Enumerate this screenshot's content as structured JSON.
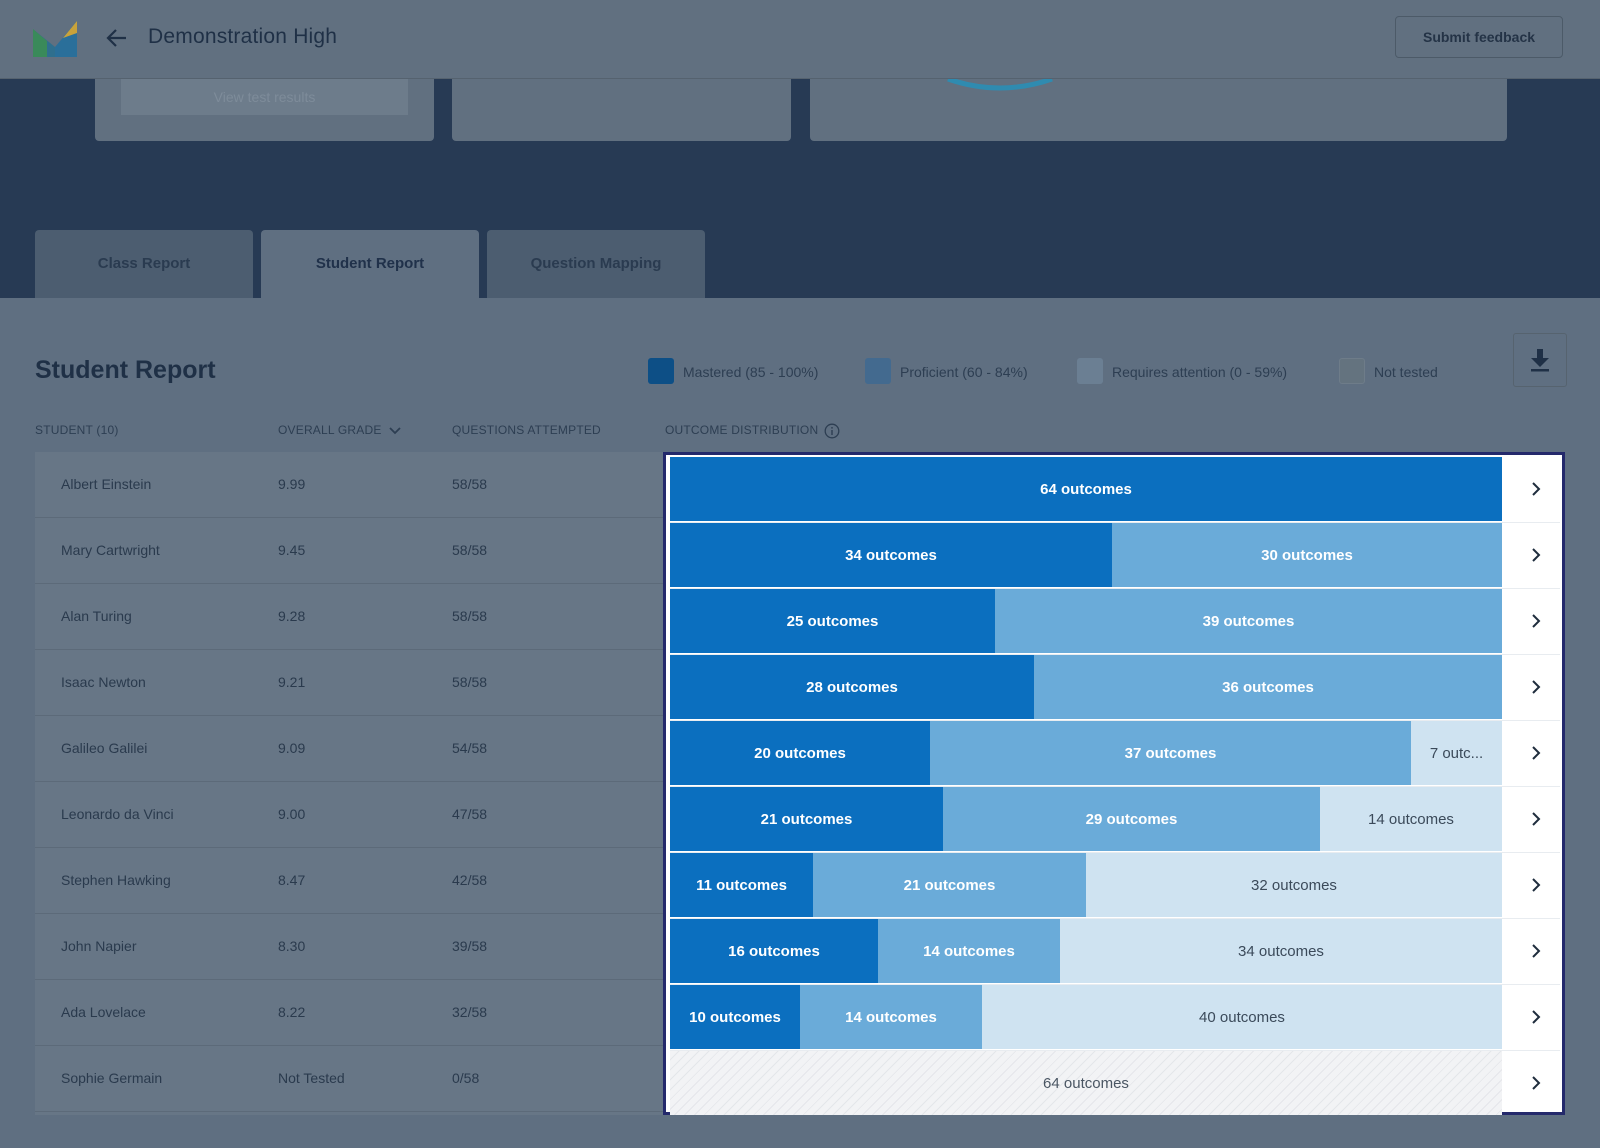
{
  "header": {
    "title": "Demonstration High",
    "feedback_label": "Submit feedback"
  },
  "cards": {
    "view_results_label": "View test results"
  },
  "tabs": [
    {
      "label": "Class Report",
      "active": false
    },
    {
      "label": "Student Report",
      "active": true
    },
    {
      "label": "Question Mapping",
      "active": false
    }
  ],
  "report": {
    "title": "Student Report",
    "legend": [
      {
        "label": "Mastered (85 - 100%)",
        "color": "#0b6fbf"
      },
      {
        "label": "Proficient (60 - 84%)",
        "color": "#6aabd9"
      },
      {
        "label": "Requires attention (0 - 59%)",
        "color": "#cfe3f1"
      },
      {
        "label": "Not tested",
        "color": "#f2f3f5"
      }
    ],
    "columns": {
      "student": "STUDENT (10)",
      "grade": "OVERALL GRADE",
      "attempted": "QUESTIONS ATTEMPTED",
      "distribution": "OUTCOME DISTRIBUTION"
    },
    "students": [
      {
        "name": "Albert Einstein",
        "grade": "9.99",
        "attempted": "58/58",
        "mastered": 64,
        "proficient": 0,
        "attention": 0,
        "not_tested": 0,
        "labels": [
          "64 outcomes"
        ]
      },
      {
        "name": "Mary Cartwright",
        "grade": "9.45",
        "attempted": "58/58",
        "mastered": 34,
        "proficient": 30,
        "attention": 0,
        "not_tested": 0,
        "labels": [
          "34 outcomes",
          "30 outcomes"
        ]
      },
      {
        "name": "Alan Turing",
        "grade": "9.28",
        "attempted": "58/58",
        "mastered": 25,
        "proficient": 39,
        "attention": 0,
        "not_tested": 0,
        "labels": [
          "25 outcomes",
          "39 outcomes"
        ]
      },
      {
        "name": "Isaac Newton",
        "grade": "9.21",
        "attempted": "58/58",
        "mastered": 28,
        "proficient": 36,
        "attention": 0,
        "not_tested": 0,
        "labels": [
          "28 outcomes",
          "36 outcomes"
        ]
      },
      {
        "name": "Galileo Galilei",
        "grade": "9.09",
        "attempted": "54/58",
        "mastered": 20,
        "proficient": 37,
        "attention": 7,
        "not_tested": 0,
        "labels": [
          "20 outcomes",
          "37 outcomes",
          "7 outc..."
        ]
      },
      {
        "name": "Leonardo da Vinci",
        "grade": "9.00",
        "attempted": "47/58",
        "mastered": 21,
        "proficient": 29,
        "attention": 14,
        "not_tested": 0,
        "labels": [
          "21 outcomes",
          "29 outcomes",
          "14 outcomes"
        ]
      },
      {
        "name": "Stephen Hawking",
        "grade": "8.47",
        "attempted": "42/58",
        "mastered": 11,
        "proficient": 21,
        "attention": 32,
        "not_tested": 0,
        "labels": [
          "11 outcomes",
          "21 outcomes",
          "32 outcomes"
        ]
      },
      {
        "name": "John Napier",
        "grade": "8.30",
        "attempted": "39/58",
        "mastered": 16,
        "proficient": 14,
        "attention": 34,
        "not_tested": 0,
        "labels": [
          "16 outcomes",
          "14 outcomes",
          "34 outcomes"
        ]
      },
      {
        "name": "Ada Lovelace",
        "grade": "8.22",
        "attempted": "32/58",
        "mastered": 10,
        "proficient": 14,
        "attention": 40,
        "not_tested": 0,
        "labels": [
          "10 outcomes",
          "14 outcomes",
          "40 outcomes"
        ]
      },
      {
        "name": "Sophie Germain",
        "grade": "Not Tested",
        "attempted": "0/58",
        "mastered": 0,
        "proficient": 0,
        "attention": 0,
        "not_tested": 64,
        "labels": [
          "64 outcomes"
        ]
      }
    ]
  }
}
